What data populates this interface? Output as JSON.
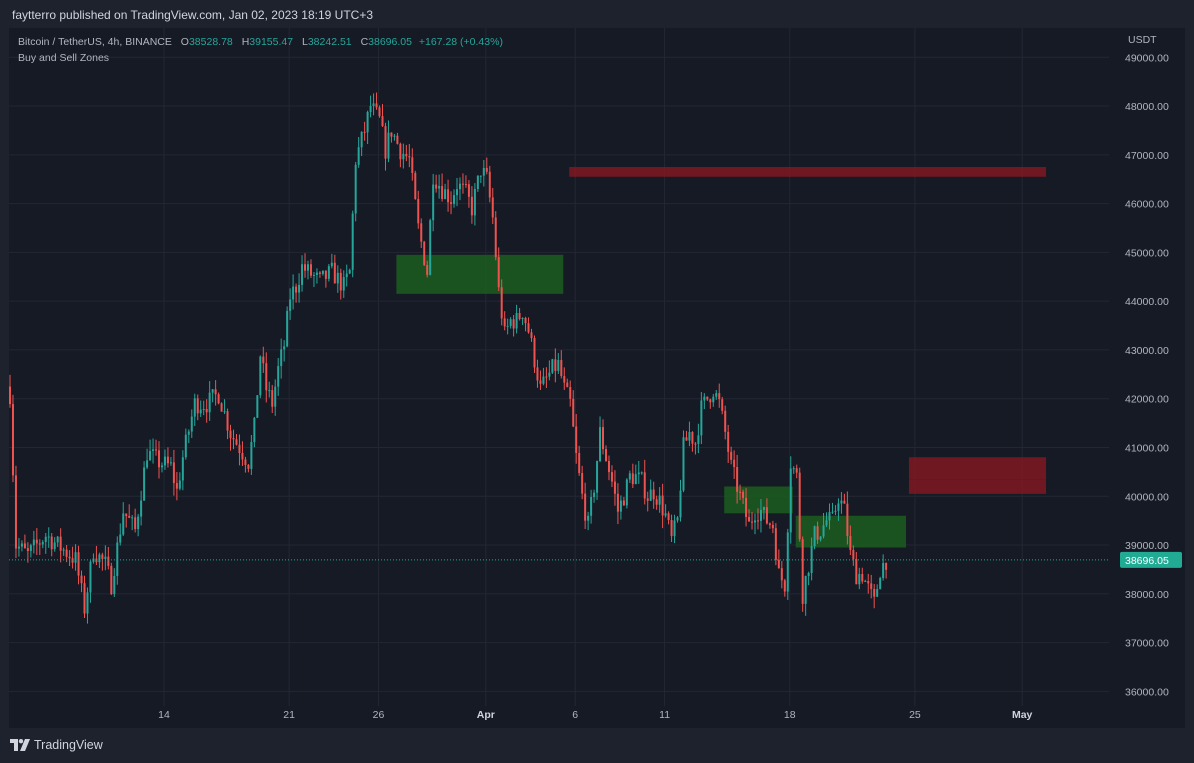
{
  "header": {
    "published": "faytterro published on TradingView.com, Jan 02, 2023 18:19 UTC+3"
  },
  "legend": {
    "symbol": "Bitcoin / TetherUS, 4h, BINANCE",
    "open_label": "O",
    "open": "38528.78",
    "high_label": "H",
    "high": "39155.47",
    "low_label": "L",
    "low": "38242.51",
    "close_label": "C",
    "close": "38696.05",
    "change": "+167.28 (+0.43%)",
    "indicator": "Buy and Sell Zones"
  },
  "footer": {
    "brand": "TradingView",
    "logo_icon": "tradingview-logo-icon"
  },
  "colors": {
    "up": "#26a69a",
    "down": "#ef5350",
    "buy_zone": "#1b5e20",
    "sell_zone": "#801922",
    "price_label": "#22ab94",
    "grid": "#232734"
  },
  "chart_data": {
    "type": "candlestick",
    "title": "Bitcoin / TetherUS, 4h, BINANCE",
    "x_ticks": [
      {
        "label": "14",
        "t": 52,
        "bold": false
      },
      {
        "label": "21",
        "t": 94,
        "bold": false
      },
      {
        "label": "26",
        "t": 124,
        "bold": false
      },
      {
        "label": "Apr",
        "t": 160,
        "bold": true
      },
      {
        "label": "6",
        "t": 190,
        "bold": false
      },
      {
        "label": "11",
        "t": 220,
        "bold": false
      },
      {
        "label": "18",
        "t": 262,
        "bold": false
      },
      {
        "label": "25",
        "t": 304,
        "bold": false
      },
      {
        "label": "May",
        "t": 340,
        "bold": true
      }
    ],
    "y_axis": {
      "unit": "USDT",
      "ticks": [
        36000,
        37000,
        38000,
        39000,
        40000,
        41000,
        42000,
        43000,
        44000,
        45000,
        46000,
        47000,
        48000,
        49000
      ],
      "range": [
        35700,
        49600
      ]
    },
    "last_price": {
      "value": 38696.05,
      "label": "38696.05"
    },
    "zones": [
      {
        "kind": "buy",
        "t0": 130,
        "t1": 186,
        "low": 44150,
        "high": 44950
      },
      {
        "kind": "sell",
        "t0": 188,
        "t1": 348,
        "low": 46550,
        "high": 46750
      },
      {
        "kind": "buy",
        "t0": 240,
        "t1": 263,
        "low": 39650,
        "high": 40200
      },
      {
        "kind": "buy",
        "t0": 264,
        "t1": 301,
        "low": 38950,
        "high": 39600
      },
      {
        "kind": "sell",
        "t0": 302,
        "t1": 348,
        "low": 40350,
        "high": 40800
      },
      {
        "kind": "sell",
        "t0": 302,
        "t1": 348,
        "low": 40050,
        "high": 40350
      }
    ],
    "close_path": [
      [
        0,
        42100
      ],
      [
        2,
        39000
      ],
      [
        6,
        38800
      ],
      [
        12,
        39200
      ],
      [
        18,
        38900
      ],
      [
        22,
        38700
      ],
      [
        25,
        37700
      ],
      [
        28,
        38900
      ],
      [
        32,
        38600
      ],
      [
        34,
        38200
      ],
      [
        38,
        39700
      ],
      [
        42,
        39300
      ],
      [
        46,
        40900
      ],
      [
        50,
        40700
      ],
      [
        54,
        40600
      ],
      [
        56,
        40100
      ],
      [
        58,
        40800
      ],
      [
        62,
        41900
      ],
      [
        66,
        41900
      ],
      [
        70,
        42100
      ],
      [
        74,
        41300
      ],
      [
        78,
        40900
      ],
      [
        80,
        40700
      ],
      [
        82,
        41400
      ],
      [
        84,
        42900
      ],
      [
        86,
        42200
      ],
      [
        88,
        41900
      ],
      [
        90,
        42600
      ],
      [
        92,
        43100
      ],
      [
        94,
        44100
      ],
      [
        96,
        44300
      ],
      [
        98,
        44700
      ],
      [
        100,
        44600
      ],
      [
        104,
        44400
      ],
      [
        108,
        44600
      ],
      [
        112,
        44300
      ],
      [
        114,
        44600
      ],
      [
        116,
        46900
      ],
      [
        119,
        47500
      ],
      [
        121,
        48000
      ],
      [
        124,
        47700
      ],
      [
        126,
        47100
      ],
      [
        128,
        47500
      ],
      [
        131,
        47100
      ],
      [
        134,
        46900
      ],
      [
        137,
        45500
      ],
      [
        140,
        44600
      ],
      [
        142,
        46600
      ],
      [
        145,
        46300
      ],
      [
        148,
        46100
      ],
      [
        150,
        46400
      ],
      [
        153,
        46200
      ],
      [
        155,
        45900
      ],
      [
        158,
        46700
      ],
      [
        160,
        46500
      ],
      [
        162,
        45700
      ],
      [
        164,
        44200
      ],
      [
        166,
        43300
      ],
      [
        168,
        43600
      ],
      [
        170,
        43600
      ],
      [
        172,
        43800
      ],
      [
        174,
        43400
      ],
      [
        176,
        42800
      ],
      [
        178,
        42200
      ],
      [
        180,
        42400
      ],
      [
        182,
        42600
      ],
      [
        184,
        42700
      ],
      [
        186,
        42200
      ],
      [
        188,
        41900
      ],
      [
        190,
        40800
      ],
      [
        192,
        40000
      ],
      [
        194,
        39400
      ],
      [
        196,
        40200
      ],
      [
        198,
        41300
      ],
      [
        200,
        40800
      ],
      [
        202,
        40300
      ],
      [
        204,
        39700
      ],
      [
        206,
        40000
      ],
      [
        208,
        40400
      ],
      [
        210,
        40400
      ],
      [
        212,
        40300
      ],
      [
        214,
        40000
      ],
      [
        216,
        40100
      ],
      [
        218,
        39900
      ],
      [
        220,
        39600
      ],
      [
        222,
        39100
      ],
      [
        224,
        39500
      ],
      [
        226,
        41000
      ],
      [
        228,
        41300
      ],
      [
        230,
        41100
      ],
      [
        232,
        41800
      ],
      [
        234,
        42000
      ],
      [
        236,
        42200
      ],
      [
        238,
        41900
      ],
      [
        240,
        41300
      ],
      [
        242,
        40600
      ],
      [
        244,
        40200
      ],
      [
        246,
        39800
      ],
      [
        248,
        39400
      ],
      [
        250,
        39700
      ],
      [
        252,
        39700
      ],
      [
        254,
        39500
      ],
      [
        256,
        39400
      ],
      [
        258,
        38400
      ],
      [
        260,
        38200
      ],
      [
        262,
        40700
      ],
      [
        264,
        40400
      ],
      [
        266,
        38000
      ],
      [
        268,
        38600
      ],
      [
        270,
        39200
      ],
      [
        272,
        39300
      ],
      [
        274,
        39500
      ],
      [
        276,
        39500
      ],
      [
        278,
        40000
      ],
      [
        280,
        39700
      ],
      [
        282,
        38800
      ],
      [
        284,
        38400
      ],
      [
        286,
        38400
      ],
      [
        288,
        38100
      ],
      [
        290,
        37800
      ],
      [
        292,
        38500
      ],
      [
        294,
        38700
      ]
    ]
  }
}
